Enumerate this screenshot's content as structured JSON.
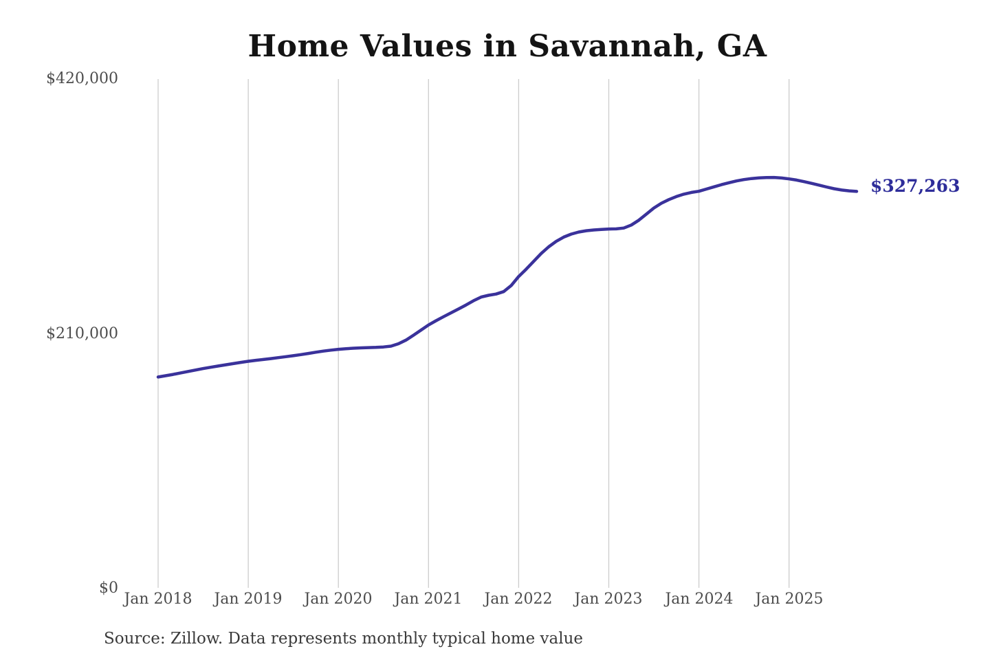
{
  "page": {
    "background": "#ffffff"
  },
  "chart_data": {
    "type": "line",
    "title": "Home Values in Savannah, GA",
    "source_note": "Source: Zillow. Data represents monthly typical home value",
    "series_name": "Monthly typical home value",
    "legend": "none",
    "grid": "vertical-only",
    "ylim": [
      0,
      420000
    ],
    "line_color": "#3a329b",
    "label_color": "#2e2d9a",
    "grid_color": "#cccccc",
    "axis_text_color": "#4d4d4d",
    "end_label": "$327,263",
    "latest_value": 327263,
    "x_tick_labels": [
      "Jan 2018",
      "Jan 2019",
      "Jan 2020",
      "Jan 2021",
      "Jan 2022",
      "Jan 2023",
      "Jan 2024",
      "Jan 2025"
    ],
    "y_ticks": [
      {
        "value": 0,
        "label": "$0"
      },
      {
        "value": 210000,
        "label": "$210,000"
      },
      {
        "value": 420000,
        "label": "$420,000"
      }
    ],
    "x": [
      "2018-01",
      "2018-02",
      "2018-03",
      "2018-04",
      "2018-05",
      "2018-06",
      "2018-07",
      "2018-08",
      "2018-09",
      "2018-10",
      "2018-11",
      "2018-12",
      "2019-01",
      "2019-02",
      "2019-03",
      "2019-04",
      "2019-05",
      "2019-06",
      "2019-07",
      "2019-08",
      "2019-09",
      "2019-10",
      "2019-11",
      "2019-12",
      "2020-01",
      "2020-02",
      "2020-03",
      "2020-04",
      "2020-05",
      "2020-06",
      "2020-07",
      "2020-08",
      "2020-09",
      "2020-10",
      "2020-11",
      "2020-12",
      "2021-01",
      "2021-02",
      "2021-03",
      "2021-04",
      "2021-05",
      "2021-06",
      "2021-07",
      "2021-08",
      "2021-09",
      "2021-10",
      "2021-11",
      "2021-12",
      "2022-01",
      "2022-02",
      "2022-03",
      "2022-04",
      "2022-05",
      "2022-06",
      "2022-07",
      "2022-08",
      "2022-09",
      "2022-10",
      "2022-11",
      "2022-12",
      "2023-01",
      "2023-02",
      "2023-03",
      "2023-04",
      "2023-05",
      "2023-06",
      "2023-07",
      "2023-08",
      "2023-09",
      "2023-10",
      "2023-11",
      "2023-12",
      "2024-01",
      "2024-02",
      "2024-03",
      "2024-04",
      "2024-05",
      "2024-06",
      "2024-07",
      "2024-08",
      "2024-09",
      "2024-10",
      "2024-11",
      "2024-12",
      "2025-01",
      "2025-02",
      "2025-03",
      "2025-04",
      "2025-05",
      "2025-06",
      "2025-07",
      "2025-08",
      "2025-09",
      "2025-10"
    ],
    "values": [
      174000,
      175100,
      176200,
      177400,
      178600,
      179800,
      181000,
      182100,
      183100,
      184100,
      185100,
      186100,
      187000,
      187800,
      188500,
      189200,
      190000,
      190800,
      191600,
      192500,
      193500,
      194500,
      195400,
      196200,
      196900,
      197400,
      197800,
      198100,
      198300,
      198500,
      198800,
      199500,
      201500,
      204500,
      208500,
      212800,
      217000,
      220500,
      223800,
      227000,
      230200,
      233500,
      237000,
      240000,
      241500,
      242500,
      244500,
      249500,
      257000,
      263000,
      269500,
      276000,
      281500,
      286000,
      289500,
      292000,
      293700,
      294800,
      295400,
      295800,
      296200,
      296300,
      297000,
      299500,
      303500,
      308500,
      313500,
      317500,
      320500,
      323000,
      325000,
      326400,
      327400,
      329200,
      331000,
      332800,
      334400,
      335900,
      337000,
      337900,
      338400,
      338700,
      338800,
      338300,
      337600,
      336600,
      335300,
      333900,
      332400,
      330900,
      329500,
      328400,
      327700,
      327263
    ]
  }
}
